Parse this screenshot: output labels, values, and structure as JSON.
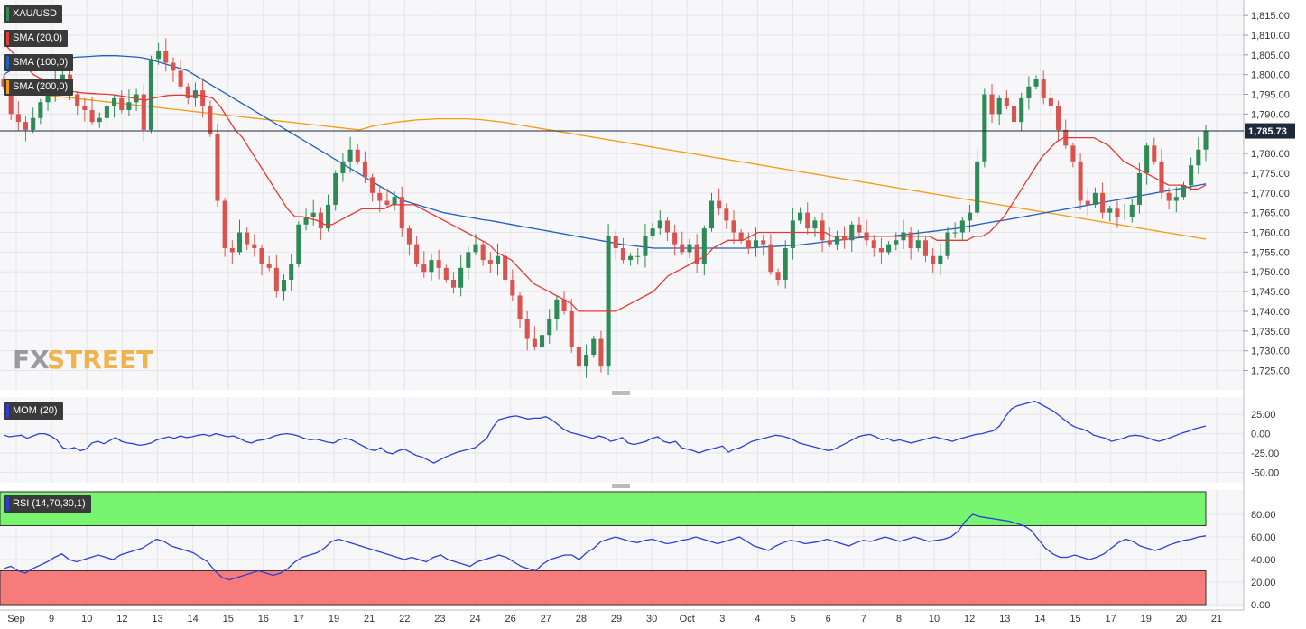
{
  "instrument": "XAU/USD",
  "brand": {
    "fx": "FX",
    "street": "STREET"
  },
  "colors": {
    "bull": "#2e8b57",
    "bear": "#d9534f",
    "sma20": "#e53935",
    "sma100": "#1f5fbf",
    "sma200": "#f39c12",
    "mom": "#2b3fd6",
    "rsi": "#2b3fd6",
    "rsi_overbought_zone": "#77f56f",
    "rsi_oversold_zone": "#f77b7b"
  },
  "legend": {
    "main": [
      {
        "label": "XAU/USD",
        "color": "#2e8b57"
      },
      {
        "label": "SMA (20,0)",
        "color": "#e53935"
      },
      {
        "label": "SMA (100,0)",
        "color": "#1f5fbf"
      },
      {
        "label": "SMA (200,0)",
        "color": "#f39c12"
      }
    ],
    "mom": {
      "label": "MOM (20)",
      "color": "#2b3fd6"
    },
    "rsi": {
      "label": "RSI (14,70,30,1)",
      "color": "#2b3fd6"
    }
  },
  "chart_data": {
    "type": "candlestick",
    "x_labels": [
      "Sep",
      "9",
      "10",
      "12",
      "13",
      "14",
      "15",
      "16",
      "17",
      "19",
      "21",
      "22",
      "23",
      "24",
      "26",
      "27",
      "28",
      "29",
      "30",
      "Oct",
      "3",
      "4",
      "5",
      "6",
      "7",
      "8",
      "10",
      "12",
      "13",
      "14",
      "15",
      "17",
      "19",
      "20",
      "21"
    ],
    "last_price": "1,785.73",
    "last_price_value": 1785.73,
    "price_axis": {
      "ticks": [
        "1,815.00",
        "1,810.00",
        "1,805.00",
        "1,800.00",
        "1,795.00",
        "1,790.00",
        "1,785.00",
        "1,780.00",
        "1,775.00",
        "1,770.00",
        "1,765.00",
        "1,760.00",
        "1,755.00",
        "1,750.00",
        "1,745.00",
        "1,740.00",
        "1,735.00",
        "1,730.00",
        "1,725.00"
      ],
      "range": [
        1721,
        1818
      ]
    },
    "mom_axis": {
      "ticks": [
        "25.00",
        "0.00",
        "-25.00",
        "-50.00"
      ],
      "range": [
        -60,
        45
      ]
    },
    "rsi_axis": {
      "ticks": [
        "80.00",
        "60.00",
        "40.00",
        "20.00",
        "0.00"
      ],
      "range": [
        0,
        100
      ],
      "overbought": 70,
      "oversold": 30
    },
    "closes": [
      1797,
      1790,
      1788,
      1786,
      1789,
      1793,
      1796,
      1799,
      1800,
      1795,
      1792,
      1791,
      1788,
      1789,
      1792,
      1794,
      1791,
      1793,
      1795,
      1786,
      1804,
      1806,
      1803,
      1801,
      1797,
      1794,
      1796,
      1792,
      1785,
      1768,
      1756,
      1755,
      1760,
      1757,
      1756,
      1752,
      1751,
      1745,
      1748,
      1752,
      1762,
      1764,
      1765,
      1761,
      1767,
      1775,
      1778,
      1781,
      1778,
      1774,
      1770,
      1768,
      1767,
      1769,
      1761,
      1757,
      1752,
      1750,
      1753,
      1751,
      1748,
      1746,
      1751,
      1755,
      1757,
      1753,
      1752,
      1754,
      1748,
      1744,
      1738,
      1733,
      1731,
      1734,
      1738,
      1743,
      1740,
      1731,
      1726,
      1729,
      1733,
      1726,
      1759,
      1756,
      1753,
      1754,
      1754,
      1759,
      1761,
      1763,
      1760,
      1757,
      1755,
      1757,
      1752,
      1761,
      1768,
      1766,
      1763,
      1760,
      1758,
      1756,
      1758,
      1757,
      1750,
      1748,
      1756,
      1763,
      1765,
      1761,
      1763,
      1758,
      1757,
      1759,
      1758,
      1762,
      1760,
      1758,
      1756,
      1755,
      1757,
      1758,
      1760,
      1756,
      1758,
      1754,
      1752,
      1754,
      1760,
      1760,
      1763,
      1765,
      1778,
      1795,
      1790,
      1794,
      1792,
      1788,
      1794,
      1797,
      1799,
      1794,
      1792,
      1786,
      1782,
      1778,
      1768,
      1767,
      1770,
      1765,
      1766,
      1764,
      1764,
      1767,
      1775,
      1782,
      1778,
      1770,
      1768,
      1769,
      1772,
      1777,
      1781,
      1785.73
    ],
    "sma20": [
      1808,
      1806,
      1804,
      1802,
      1800,
      1799,
      1798,
      1797,
      1796,
      1795.8,
      1795.5,
      1795.3,
      1795.2,
      1795.1,
      1795.0,
      1794.8,
      1794.5,
      1794.2,
      1793.8,
      1793.5,
      1794,
      1794.4,
      1794.7,
      1794.8,
      1794.8,
      1794.6,
      1794.8,
      1794.6,
      1794,
      1792,
      1789,
      1786,
      1784,
      1781,
      1778,
      1775,
      1772,
      1769,
      1766,
      1764,
      1764,
      1763.5,
      1763,
      1762,
      1762,
      1763,
      1764,
      1765,
      1766,
      1766,
      1766,
      1766,
      1767,
      1767,
      1767,
      1767,
      1766,
      1765,
      1764,
      1763,
      1762,
      1761,
      1760,
      1759,
      1758,
      1757,
      1755,
      1754,
      1753,
      1751,
      1749,
      1747,
      1746,
      1745,
      1744,
      1743,
      1742,
      1740,
      1740,
      1740,
      1740,
      1740,
      1740,
      1741,
      1742,
      1743,
      1744,
      1745,
      1747,
      1749,
      1750,
      1751,
      1752,
      1753,
      1754,
      1756,
      1757,
      1758,
      1758,
      1758,
      1759,
      1760,
      1760,
      1760,
      1760,
      1760,
      1760,
      1760,
      1760,
      1760,
      1760,
      1759,
      1759,
      1759,
      1759,
      1759,
      1759,
      1759,
      1759,
      1759,
      1759,
      1759,
      1759,
      1759,
      1759,
      1758,
      1758,
      1758,
      1758,
      1758,
      1759,
      1759,
      1760,
      1762,
      1764,
      1767,
      1770,
      1773,
      1776,
      1779,
      1781,
      1783,
      1784,
      1784,
      1784,
      1784,
      1784,
      1783,
      1782,
      1780,
      1778,
      1777,
      1776,
      1775,
      1774,
      1773,
      1772,
      1772,
      1772,
      1771,
      1771,
      1772
    ],
    "sma100": [
      1800,
      1801,
      1802,
      1802.5,
      1803,
      1803.2,
      1803.5,
      1803.8,
      1804,
      1804,
      1804.2,
      1804.4,
      1804.5,
      1804.6,
      1804.7,
      1804.8,
      1804.8,
      1804.8,
      1804.7,
      1804.6,
      1804.5,
      1804.3,
      1804,
      1803.5,
      1803,
      1802.5,
      1802,
      1801.5,
      1801,
      1800,
      1799,
      1798,
      1797,
      1796,
      1795,
      1794,
      1793,
      1792,
      1791,
      1790,
      1789,
      1788,
      1787,
      1786,
      1785,
      1784,
      1783,
      1782,
      1781,
      1780,
      1779,
      1778,
      1777,
      1776,
      1775,
      1774,
      1773,
      1772,
      1771,
      1770,
      1769,
      1768,
      1767.5,
      1767,
      1766.5,
      1766,
      1765.5,
      1765,
      1764.7,
      1764.4,
      1764.1,
      1763.8,
      1763.5,
      1763.2,
      1763,
      1762.7,
      1762.4,
      1762.1,
      1761.8,
      1761.5,
      1761.2,
      1760.9,
      1760.6,
      1760.3,
      1760,
      1759.7,
      1759.4,
      1759.1,
      1758.8,
      1758.5,
      1758.2,
      1757.9,
      1757.6,
      1757.3,
      1757,
      1756.8,
      1756.6,
      1756.4,
      1756.2,
      1756,
      1756,
      1756,
      1756,
      1756,
      1756,
      1756,
      1756,
      1756,
      1756,
      1756,
      1756,
      1756,
      1756,
      1756,
      1756.1,
      1756.2,
      1756.3,
      1756.4,
      1756.5,
      1756.6,
      1756.7,
      1756.8,
      1757,
      1757.2,
      1757.4,
      1757.6,
      1757.8,
      1758,
      1758.2,
      1758.4,
      1758.6,
      1758.8,
      1759,
      1759,
      1759,
      1759,
      1759.2,
      1759.4,
      1759.6,
      1759.8,
      1760,
      1760.2,
      1760.4,
      1760.6,
      1760.8,
      1761,
      1761.3,
      1761.6,
      1761.9,
      1762.2,
      1762.5,
      1762.8,
      1763,
      1763.3,
      1763.6,
      1763.9,
      1764.2,
      1764.5,
      1764.8,
      1765.1,
      1765.4,
      1765.7,
      1766,
      1766.3,
      1766.6,
      1766.9,
      1767.2,
      1767.5,
      1767.8,
      1768.1,
      1768.4,
      1768.7,
      1769,
      1769.3,
      1769.6,
      1769.9,
      1770.2,
      1770.5,
      1770.8,
      1771.1,
      1771.4,
      1771.7,
      1772,
      1772.3
    ],
    "sma200": [
      1796,
      1795.8,
      1795.6,
      1795.4,
      1795.2,
      1795,
      1794.8,
      1794.6,
      1794.4,
      1794.2,
      1794,
      1793.8,
      1793.6,
      1793.4,
      1793.2,
      1793,
      1792.8,
      1792.6,
      1792.4,
      1792.2,
      1792,
      1791.8,
      1791.6,
      1791.4,
      1791.2,
      1791,
      1790.8,
      1790.6,
      1790.4,
      1790.2,
      1790,
      1789.8,
      1789.6,
      1789.4,
      1789.2,
      1789,
      1788.8,
      1788.6,
      1788.4,
      1788.2,
      1788,
      1787.8,
      1787.6,
      1787.4,
      1787.2,
      1787,
      1786.8,
      1786.6,
      1786.4,
      1786.2,
      1786,
      1786.5,
      1787,
      1787.3,
      1787.6,
      1787.9,
      1788.1,
      1788.3,
      1788.5,
      1788.6,
      1788.7,
      1788.8,
      1788.8,
      1788.8,
      1788.8,
      1788.8,
      1788.7,
      1788.6,
      1788.4,
      1788.2,
      1788,
      1787.7,
      1787.4,
      1787.1,
      1786.8,
      1786.5,
      1786.2,
      1785.9,
      1785.6,
      1785.3,
      1785,
      1784.7,
      1784.4,
      1784.1,
      1783.8,
      1783.5,
      1783.2,
      1782.9,
      1782.6,
      1782.3,
      1782,
      1781.7,
      1781.4,
      1781.1,
      1780.8,
      1780.5,
      1780.2,
      1779.9,
      1779.6,
      1779.3,
      1779,
      1778.7,
      1778.4,
      1778.1,
      1777.8,
      1777.5,
      1777.2,
      1776.9,
      1776.6,
      1776.3,
      1776,
      1775.7,
      1775.4,
      1775.1,
      1774.8,
      1774.5,
      1774.2,
      1773.9,
      1773.6,
      1773.3,
      1773,
      1772.7,
      1772.4,
      1772.1,
      1771.8,
      1771.5,
      1771.2,
      1770.9,
      1770.6,
      1770.3,
      1770,
      1769.7,
      1769.4,
      1769.1,
      1768.8,
      1768.5,
      1768.2,
      1767.9,
      1767.6,
      1767.3,
      1767,
      1766.7,
      1766.4,
      1766.1,
      1765.8,
      1765.5,
      1765.2,
      1764.9,
      1764.6,
      1764.3,
      1764,
      1763.7,
      1763.4,
      1763.1,
      1762.8,
      1762.5,
      1762.2,
      1761.9,
      1761.6,
      1761.3,
      1761,
      1760.7,
      1760.4,
      1760.1,
      1759.8,
      1759.5,
      1759.2,
      1758.9,
      1758.6,
      1758.3
    ],
    "mom": [
      -2,
      -4,
      -3,
      -2,
      -6,
      -3,
      0,
      0,
      -3,
      -8,
      -18,
      -20,
      -18,
      -22,
      -20,
      -12,
      -10,
      -13,
      -9,
      -5,
      -10,
      -12,
      -13,
      -15,
      -14,
      -12,
      -8,
      -6,
      -4,
      -6,
      -3,
      -5,
      -4,
      -2,
      -1,
      -3,
      0,
      -2,
      -4,
      -3,
      -6,
      -10,
      -12,
      -9,
      -8,
      -6,
      -3,
      -1,
      0,
      -1,
      -3,
      -6,
      -8,
      -7,
      -9,
      -11,
      -12,
      -8,
      -6,
      -8,
      -12,
      -16,
      -20,
      -22,
      -18,
      -24,
      -26,
      -22,
      -20,
      -24,
      -28,
      -30,
      -34,
      -38,
      -34,
      -30,
      -27,
      -24,
      -22,
      -20,
      -18,
      -12,
      -6,
      8,
      18,
      20,
      22,
      23,
      21,
      19,
      20,
      20,
      22,
      18,
      12,
      6,
      2,
      0,
      -2,
      -4,
      -6,
      -3,
      -5,
      -10,
      -8,
      -5,
      -12,
      -14,
      -12,
      -10,
      -6,
      -4,
      -10,
      -12,
      -10,
      -18,
      -20,
      -22,
      -25,
      -22,
      -20,
      -18,
      -16,
      -24,
      -20,
      -18,
      -14,
      -10,
      -8,
      -6,
      -4,
      -2,
      -3,
      -5,
      -8,
      -12,
      -14,
      -16,
      -18,
      -20,
      -22,
      -20,
      -16,
      -12,
      -8,
      -4,
      -2,
      -1,
      -4,
      -8,
      -6,
      -10,
      -8,
      -10,
      -12,
      -10,
      -8,
      -6,
      -4,
      -6,
      -8,
      -10,
      -7,
      -5,
      -3,
      -1,
      0,
      2,
      4,
      10,
      22,
      32,
      36,
      38,
      40,
      42,
      38,
      34,
      30,
      24,
      18,
      12,
      8,
      6,
      3,
      -2,
      -4,
      -6,
      -10,
      -8,
      -6,
      -3,
      -2,
      -3,
      -5,
      -8,
      -10,
      -8,
      -5,
      -2,
      1,
      3,
      6,
      8,
      10
    ],
    "rsi": [
      32,
      34,
      30,
      28,
      32,
      35,
      38,
      42,
      45,
      40,
      38,
      40,
      42,
      44,
      42,
      40,
      44,
      46,
      48,
      50,
      54,
      58,
      56,
      52,
      50,
      48,
      46,
      42,
      38,
      30,
      24,
      22,
      24,
      26,
      28,
      30,
      28,
      26,
      28,
      32,
      38,
      42,
      44,
      46,
      50,
      56,
      58,
      56,
      54,
      52,
      50,
      48,
      46,
      44,
      42,
      40,
      42,
      40,
      38,
      42,
      44,
      40,
      38,
      36,
      34,
      38,
      40,
      42,
      44,
      42,
      38,
      34,
      32,
      30,
      36,
      40,
      42,
      44,
      44,
      40,
      46,
      50,
      56,
      58,
      60,
      58,
      56,
      55,
      57,
      58,
      56,
      54,
      55,
      57,
      58,
      60,
      58,
      56,
      54,
      56,
      58,
      60,
      56,
      52,
      50,
      48,
      52,
      55,
      57,
      56,
      54,
      55,
      56,
      58,
      56,
      54,
      52,
      55,
      57,
      56,
      58,
      60,
      58,
      56,
      58,
      60,
      58,
      56,
      57,
      58,
      60,
      65,
      74,
      80,
      78,
      77,
      76,
      75,
      74,
      72,
      70,
      66,
      58,
      50,
      45,
      42,
      42,
      44,
      42,
      40,
      42,
      45,
      50,
      55,
      58,
      56,
      52,
      50,
      48,
      50,
      53,
      55,
      57,
      58,
      60,
      61
    ]
  }
}
